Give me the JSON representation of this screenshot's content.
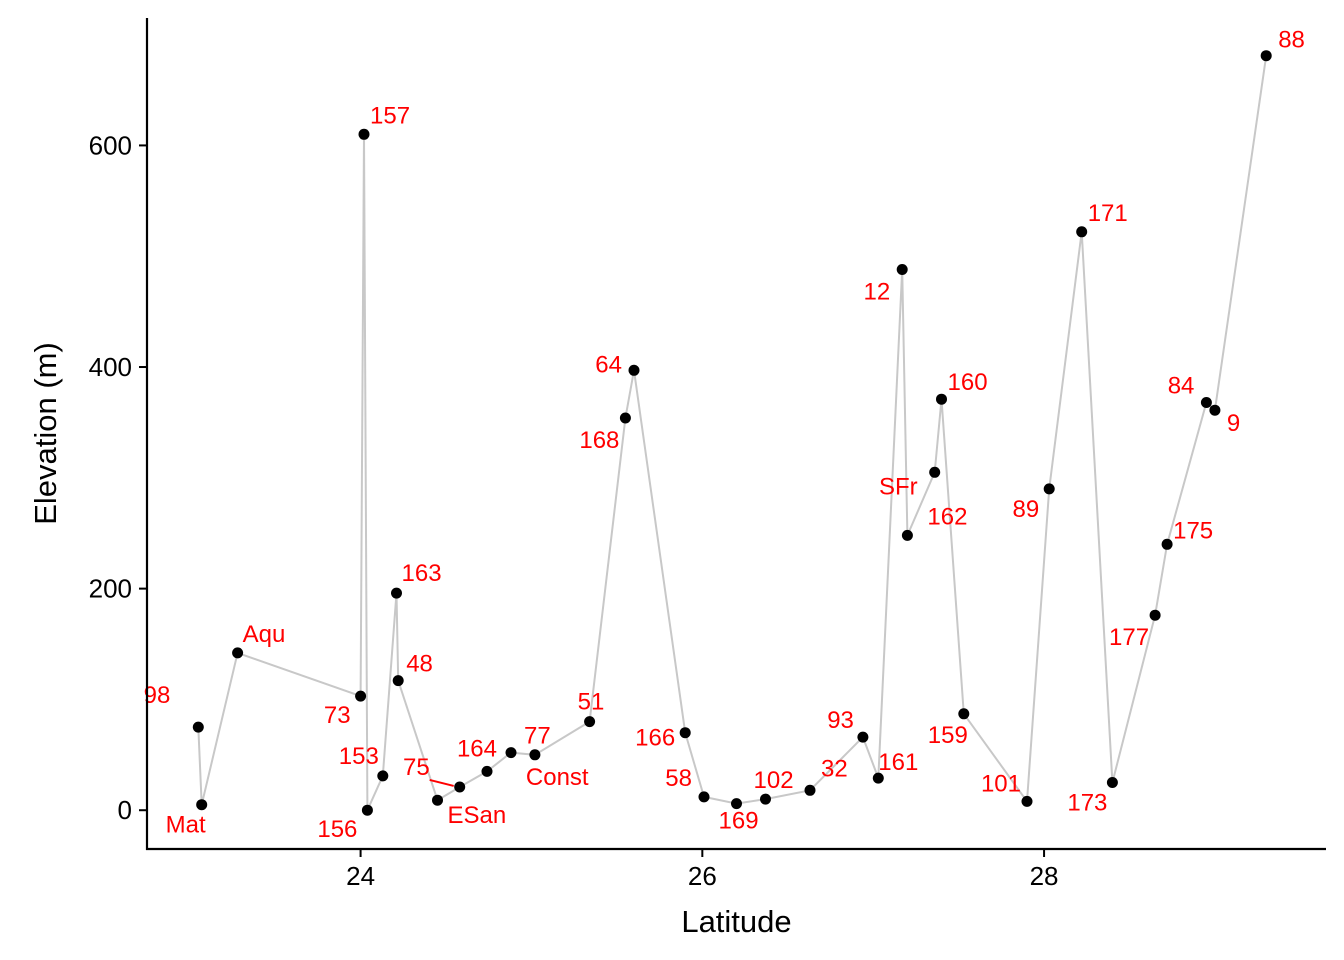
{
  "chart_data": {
    "type": "line",
    "xlabel": "Latitude",
    "ylabel": "Elevation (m)",
    "xlim": [
      22.75,
      29.65
    ],
    "ylim": [
      -35,
      715
    ],
    "x_ticks": [
      24,
      26,
      28
    ],
    "y_ticks": [
      0,
      200,
      400,
      600
    ],
    "grid": false,
    "legend": "none",
    "line_color": "#c8c8c8",
    "point_color": "#000000",
    "label_color": "#ff0000",
    "points": [
      {
        "label": "98",
        "x": 23.05,
        "y": 75
      },
      {
        "label": "Mat",
        "x": 23.07,
        "y": 5
      },
      {
        "label": "Aqu",
        "x": 23.28,
        "y": 142
      },
      {
        "label": "73",
        "x": 24.0,
        "y": 103
      },
      {
        "label": "157",
        "x": 24.02,
        "y": 610
      },
      {
        "label": "156",
        "x": 24.04,
        "y": 0
      },
      {
        "label": "153",
        "x": 24.13,
        "y": 31
      },
      {
        "label": "163",
        "x": 24.21,
        "y": 196
      },
      {
        "label": "48",
        "x": 24.22,
        "y": 117
      },
      {
        "label": "ESan",
        "x": 24.45,
        "y": 9
      },
      {
        "label": "75",
        "x": 24.58,
        "y": 21
      },
      {
        "label": "164",
        "x": 24.74,
        "y": 35
      },
      {
        "label": "77",
        "x": 24.88,
        "y": 52
      },
      {
        "label": "Const",
        "x": 25.02,
        "y": 50
      },
      {
        "label": "51",
        "x": 25.34,
        "y": 80
      },
      {
        "label": "168",
        "x": 25.55,
        "y": 354
      },
      {
        "label": "64",
        "x": 25.6,
        "y": 397
      },
      {
        "label": "166",
        "x": 25.9,
        "y": 70
      },
      {
        "label": "58",
        "x": 26.01,
        "y": 12
      },
      {
        "label": "169",
        "x": 26.2,
        "y": 6
      },
      {
        "label": "102",
        "x": 26.37,
        "y": 10
      },
      {
        "label": "32",
        "x": 26.63,
        "y": 18
      },
      {
        "label": "93",
        "x": 26.94,
        "y": 66
      },
      {
        "label": "161",
        "x": 27.03,
        "y": 29
      },
      {
        "label": "12",
        "x": 27.17,
        "y": 488
      },
      {
        "label": "162",
        "x": 27.2,
        "y": 248
      },
      {
        "label": "SFr",
        "x": 27.36,
        "y": 305
      },
      {
        "label": "160",
        "x": 27.4,
        "y": 371
      },
      {
        "label": "159",
        "x": 27.53,
        "y": 87
      },
      {
        "label": "101",
        "x": 27.9,
        "y": 8
      },
      {
        "label": "89",
        "x": 28.03,
        "y": 290
      },
      {
        "label": "171",
        "x": 28.22,
        "y": 522
      },
      {
        "label": "173",
        "x": 28.4,
        "y": 25
      },
      {
        "label": "177",
        "x": 28.65,
        "y": 176
      },
      {
        "label": "175",
        "x": 28.72,
        "y": 240
      },
      {
        "label": "84",
        "x": 28.95,
        "y": 368
      },
      {
        "label": "9",
        "x": 29.0,
        "y": 361
      },
      {
        "label": "88",
        "x": 29.3,
        "y": 681
      }
    ]
  }
}
